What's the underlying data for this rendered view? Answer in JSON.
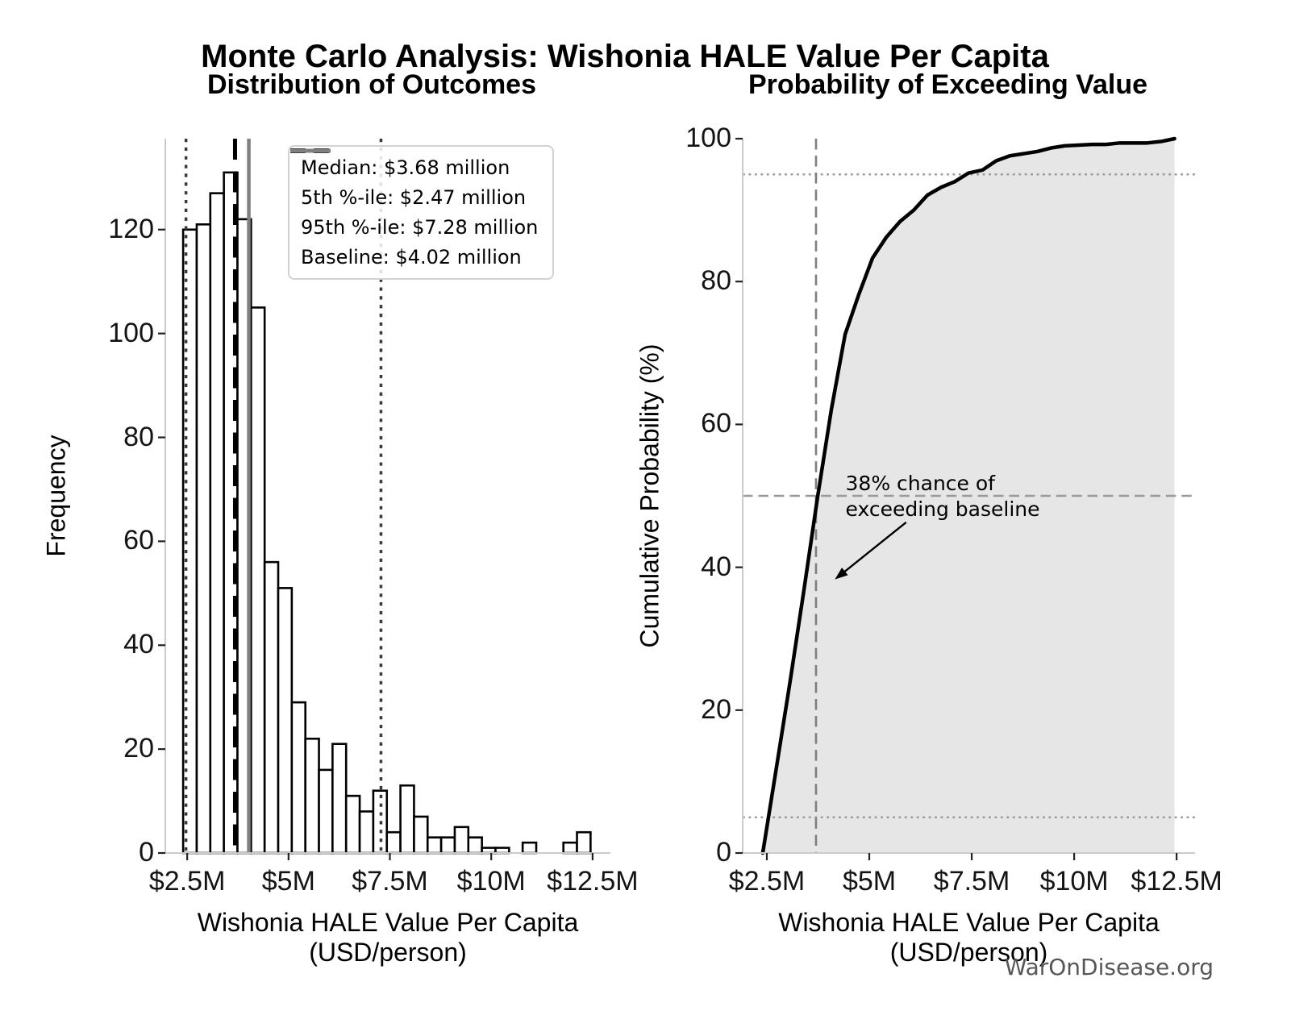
{
  "page": {
    "suptitle": "Monte Carlo Analysis: Wishonia HALE Value Per Capita",
    "watermark": "WarOnDisease.org"
  },
  "colors": {
    "bar_fill": "#ffffff",
    "bar_edge": "#000000",
    "spine": "#cbcbcb",
    "tick": "#222222",
    "cdf_line": "#000000",
    "cdf_fill": "#e6e6e6",
    "guide_gray": "#999999",
    "vline_gray": "#7f7f7f",
    "median_black": "#000000",
    "percentile_gray": "#3a3a3a",
    "baseline_gray": "#808080"
  },
  "chart_data": [
    {
      "type": "bar",
      "panel": "left",
      "title": "Distribution of Outcomes",
      "xlabel": "Wishonia HALE Value Per Capita (USD/person)",
      "ylabel": "Frequency",
      "xlim": [
        1.96,
        12.94
      ],
      "ylim": [
        0,
        137.5
      ],
      "x_tick_values": [
        2.5,
        5,
        7.5,
        10,
        12.5
      ],
      "x_tick_labels": [
        "$2.5M",
        "$5M",
        "$7.5M",
        "$10M",
        "$12.5M"
      ],
      "y_tick_values": [
        0,
        20,
        40,
        60,
        80,
        100,
        120
      ],
      "grid": false,
      "bins": {
        "start_musd": 2.4,
        "width_musd": 0.335
      },
      "frequencies": [
        120,
        121,
        127,
        131,
        122,
        105,
        56,
        51,
        29,
        22,
        16,
        21,
        11,
        8,
        12,
        4,
        13,
        7,
        3,
        3,
        5,
        3,
        1,
        1,
        0,
        2,
        0,
        0,
        2,
        4
      ],
      "vlines": [
        {
          "name": "median-line",
          "x_musd": 3.68,
          "style": "dashed",
          "color": "#000000",
          "width": 5
        },
        {
          "name": "5th-percentile-line",
          "x_musd": 2.47,
          "style": "dotted",
          "color": "#3a3a3a",
          "width": 3.5
        },
        {
          "name": "95th-percentile-line",
          "x_musd": 7.28,
          "style": "dotted",
          "color": "#3a3a3a",
          "width": 3.5
        },
        {
          "name": "baseline-line",
          "x_musd": 4.02,
          "style": "solid",
          "color": "#808080",
          "width": 4.5
        }
      ],
      "legend": {
        "position": "upper-right",
        "items": [
          {
            "label": "Median: $3.68 million",
            "style": "dashed",
            "color": "#000000",
            "width": 6
          },
          {
            "label": "5th %-ile: $2.47 million",
            "style": "dotted",
            "color": "#3a3a3a",
            "width": 4
          },
          {
            "label": "95th %-ile: $7.28 million",
            "style": "dotted",
            "color": "#3a3a3a",
            "width": 4
          },
          {
            "label": "Baseline: $4.02 million",
            "style": "solid",
            "color": "#808080",
            "width": 5
          }
        ]
      }
    },
    {
      "type": "line",
      "panel": "right",
      "title": "Probability of Exceeding Value",
      "xlabel": "Wishonia HALE Value Per Capita (USD/person)",
      "ylabel": "Cumulative Probability (%)",
      "xlim": [
        1.91,
        12.95
      ],
      "ylim": [
        0,
        100
      ],
      "x_tick_values": [
        2.5,
        5,
        7.5,
        10,
        12.5
      ],
      "x_tick_labels": [
        "$2.5M",
        "$5M",
        "$7.5M",
        "$10M",
        "$12.5M"
      ],
      "y_tick_values": [
        0,
        20,
        40,
        60,
        80,
        100
      ],
      "grid": false,
      "line_color": "#000000",
      "line_width": 4.5,
      "fill_color": "#e6e6e6",
      "cdf": {
        "x_musd": [
          2.4,
          2.735,
          3.07,
          3.405,
          3.74,
          4.075,
          4.41,
          4.745,
          5.08,
          5.415,
          5.75,
          6.085,
          6.42,
          6.755,
          7.09,
          7.425,
          7.76,
          8.095,
          8.43,
          8.765,
          9.1,
          9.435,
          9.77,
          10.105,
          10.44,
          10.775,
          11.11,
          11.445,
          11.78,
          12.115,
          12.45
        ],
        "y_pct": [
          0,
          12.0,
          24.1,
          36.8,
          49.9,
          62.1,
          72.6,
          78.2,
          83.3,
          86.2,
          88.4,
          90.0,
          92.1,
          93.2,
          94.0,
          95.2,
          95.6,
          96.9,
          97.6,
          97.9,
          98.2,
          98.7,
          99.0,
          99.1,
          99.2,
          99.2,
          99.4,
          99.4,
          99.4,
          99.6,
          100.0
        ]
      },
      "hlines": [
        {
          "name": "5pct-guide-line",
          "y_pct": 5,
          "style": "dotted",
          "color": "#999999",
          "width": 2.4
        },
        {
          "name": "50pct-guide-line",
          "y_pct": 50,
          "style": "dashed",
          "color": "#999999",
          "width": 2.4
        },
        {
          "name": "95pct-guide-line",
          "y_pct": 95,
          "style": "dotted",
          "color": "#999999",
          "width": 2.4
        }
      ],
      "vlines": [
        {
          "name": "baseline-guide-line",
          "x_musd": 3.7,
          "style": "dashed",
          "color": "#7f7f7f",
          "width": 2.6
        }
      ],
      "annotation": {
        "lines": [
          "38% chance of",
          "exceeding baseline"
        ],
        "text_x_musd": 4.42,
        "text_y_pct": 53.5,
        "arrow_from": {
          "x_musd": 5.9,
          "y_pct": 46.3
        },
        "arrow_to": {
          "x_musd": 4.16,
          "y_pct": 38.3
        }
      }
    }
  ]
}
